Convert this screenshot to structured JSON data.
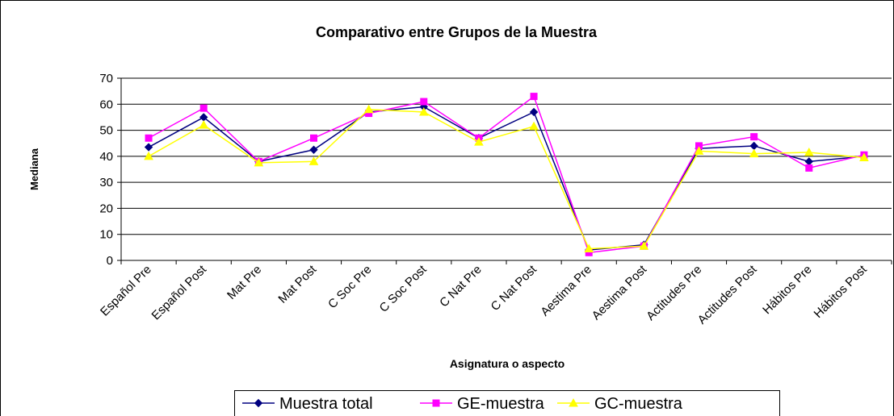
{
  "chart_data": {
    "type": "line",
    "title": "Comparativo entre Grupos de la Muestra",
    "y_label": "Mediana",
    "x_label": "Asignatura o aspecto",
    "categories": [
      "Español Pre",
      "Español Post",
      "Mat Pre",
      "Mat Post",
      "C Soc Pre",
      "C Soc Post",
      "C Nat Pre",
      "C Nat Post",
      "Aestima Pre",
      "Aestima Post",
      "Actitudes Pre",
      "Actitudes Post",
      "Hábitos Pre",
      "Hábitos Post"
    ],
    "series": [
      {
        "name": "Muestra total",
        "color": "#000080",
        "marker": "diamond",
        "values": [
          43.5,
          55,
          38,
          42.5,
          57,
          59,
          47,
          57,
          4,
          6,
          43,
          44,
          38,
          40
        ]
      },
      {
        "name": "GE-muestra",
        "color": "#ff00ff",
        "marker": "square",
        "values": [
          47,
          58.5,
          38,
          47,
          56.5,
          61,
          47,
          63,
          3,
          5.5,
          44,
          47.5,
          35.5,
          40.5
        ]
      },
      {
        "name": "GC-muestra",
        "color": "#ffff00",
        "marker": "triangle",
        "values": [
          40,
          52,
          37.5,
          38,
          58,
          57,
          45.5,
          51.5,
          4.5,
          5.5,
          42,
          41,
          41.5,
          39.5
        ]
      }
    ],
    "ylim": [
      0,
      70
    ],
    "yticks": [
      0,
      10,
      20,
      30,
      40,
      50,
      60,
      70
    ],
    "grid": true,
    "legend": "bottom"
  }
}
